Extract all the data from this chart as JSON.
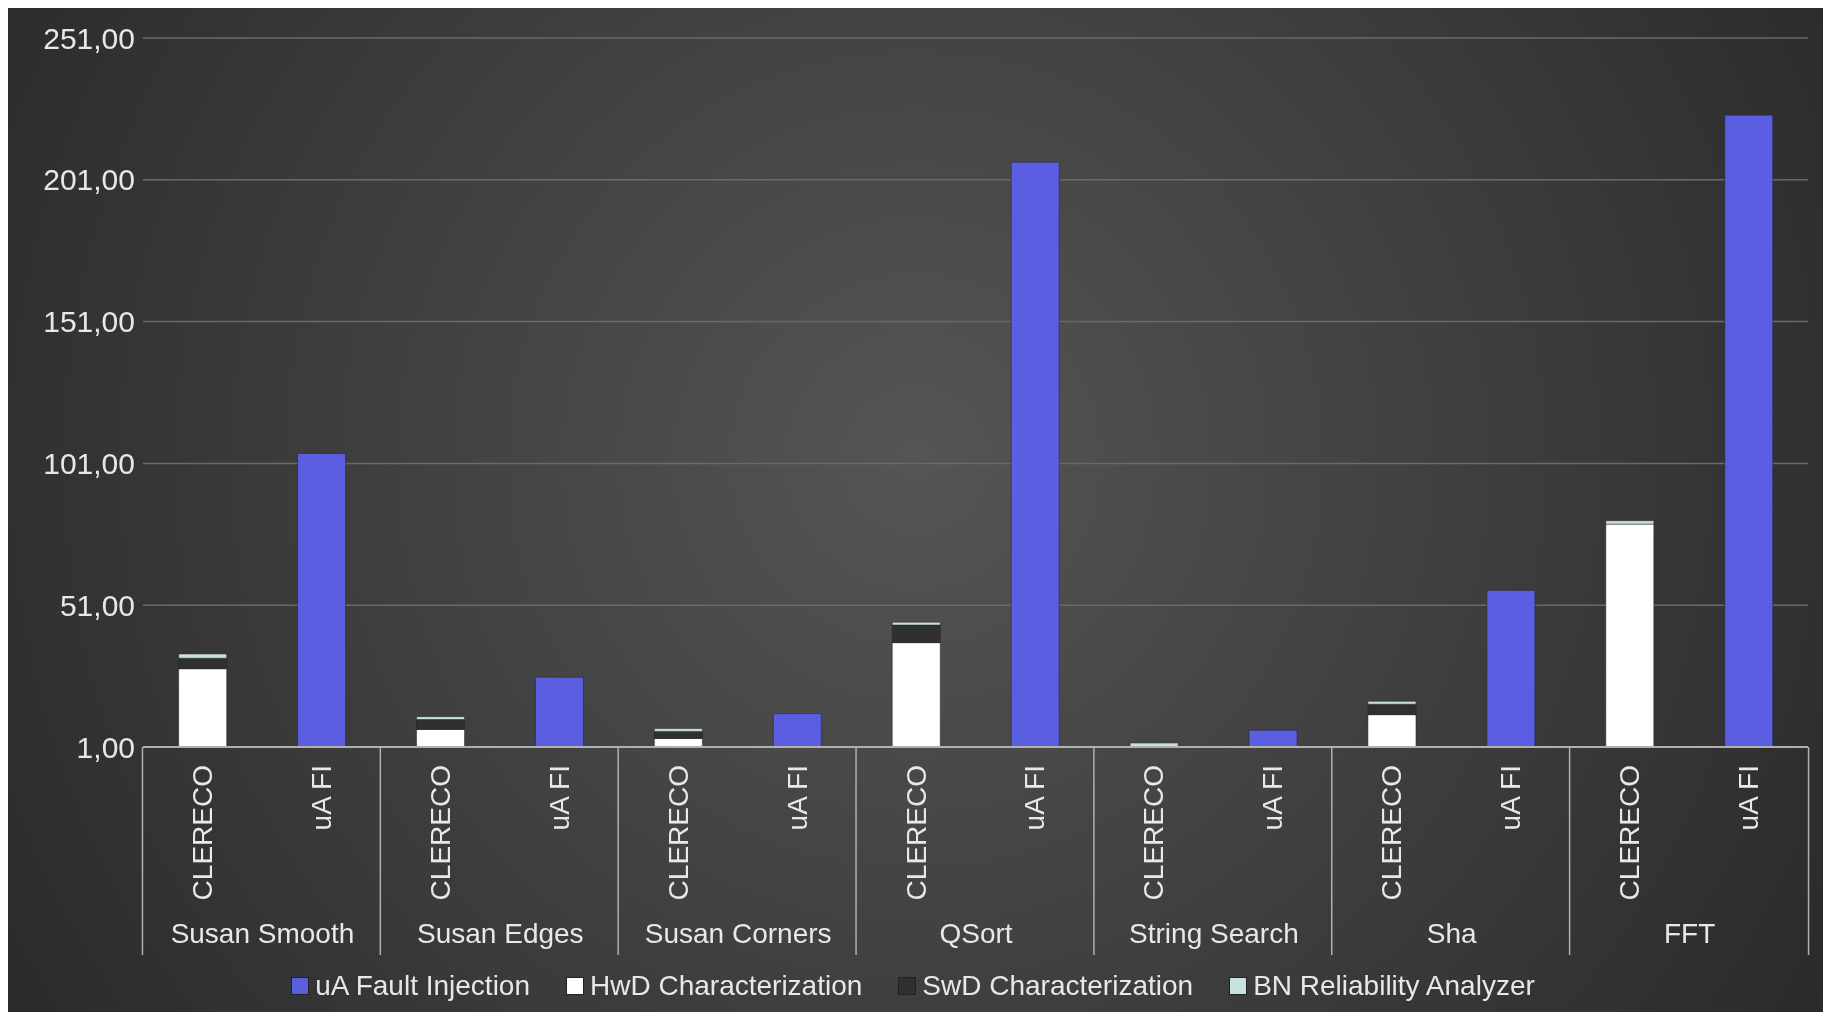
{
  "chart_data": {
    "type": "bar",
    "stacked": true,
    "categories": [
      "CLERECO",
      "uA FI",
      "CLERECO",
      "uA FI",
      "CLERECO",
      "uA FI",
      "CLERECO",
      "uA FI",
      "CLERECO",
      "uA FI",
      "CLERECO",
      "uA FI",
      "CLERECO",
      "uA FI"
    ],
    "series": [
      {
        "name": "uA Fault Injection",
        "color": "#5a5ee0",
        "values": [
          null,
          104.5,
          null,
          25.6,
          null,
          12.8,
          null,
          207.2,
          null,
          6.9,
          null,
          56.2,
          null,
          223.8
        ]
      },
      {
        "name": "HwD Characterization",
        "color": "#ffffff",
        "values": [
          28.6,
          null,
          7.2,
          null,
          4,
          null,
          37.8,
          null,
          null,
          null,
          12.4,
          null,
          79.6,
          null
        ]
      },
      {
        "name": "SwD Characterization",
        "color": "#303030",
        "values": [
          3.7,
          null,
          3.5,
          null,
          2.5,
          null,
          6.2,
          null,
          null,
          null,
          3.7,
          null,
          null,
          null
        ]
      },
      {
        "name": "BN Reliability Analyzer",
        "color": "#c8e0e0",
        "values": [
          1.5,
          null,
          1,
          null,
          1,
          null,
          1,
          null,
          2.4,
          null,
          1,
          null,
          1.2,
          null
        ]
      }
    ],
    "ylim": [
      1,
      251
    ],
    "yticks": [
      {
        "value": 1,
        "label": "1,00"
      },
      {
        "value": 51,
        "label": "51,00"
      },
      {
        "value": 101,
        "label": "101,00"
      },
      {
        "value": 151,
        "label": "151,00"
      },
      {
        "value": 201,
        "label": "201,00"
      },
      {
        "value": 251,
        "label": "251,00"
      }
    ],
    "grid": "y",
    "legend": "bottom",
    "annotations": [
      "Susan Smooth",
      "Susan Edges",
      "Susan Corners",
      "QSort",
      "String Search",
      "Sha",
      "FFT"
    ]
  }
}
